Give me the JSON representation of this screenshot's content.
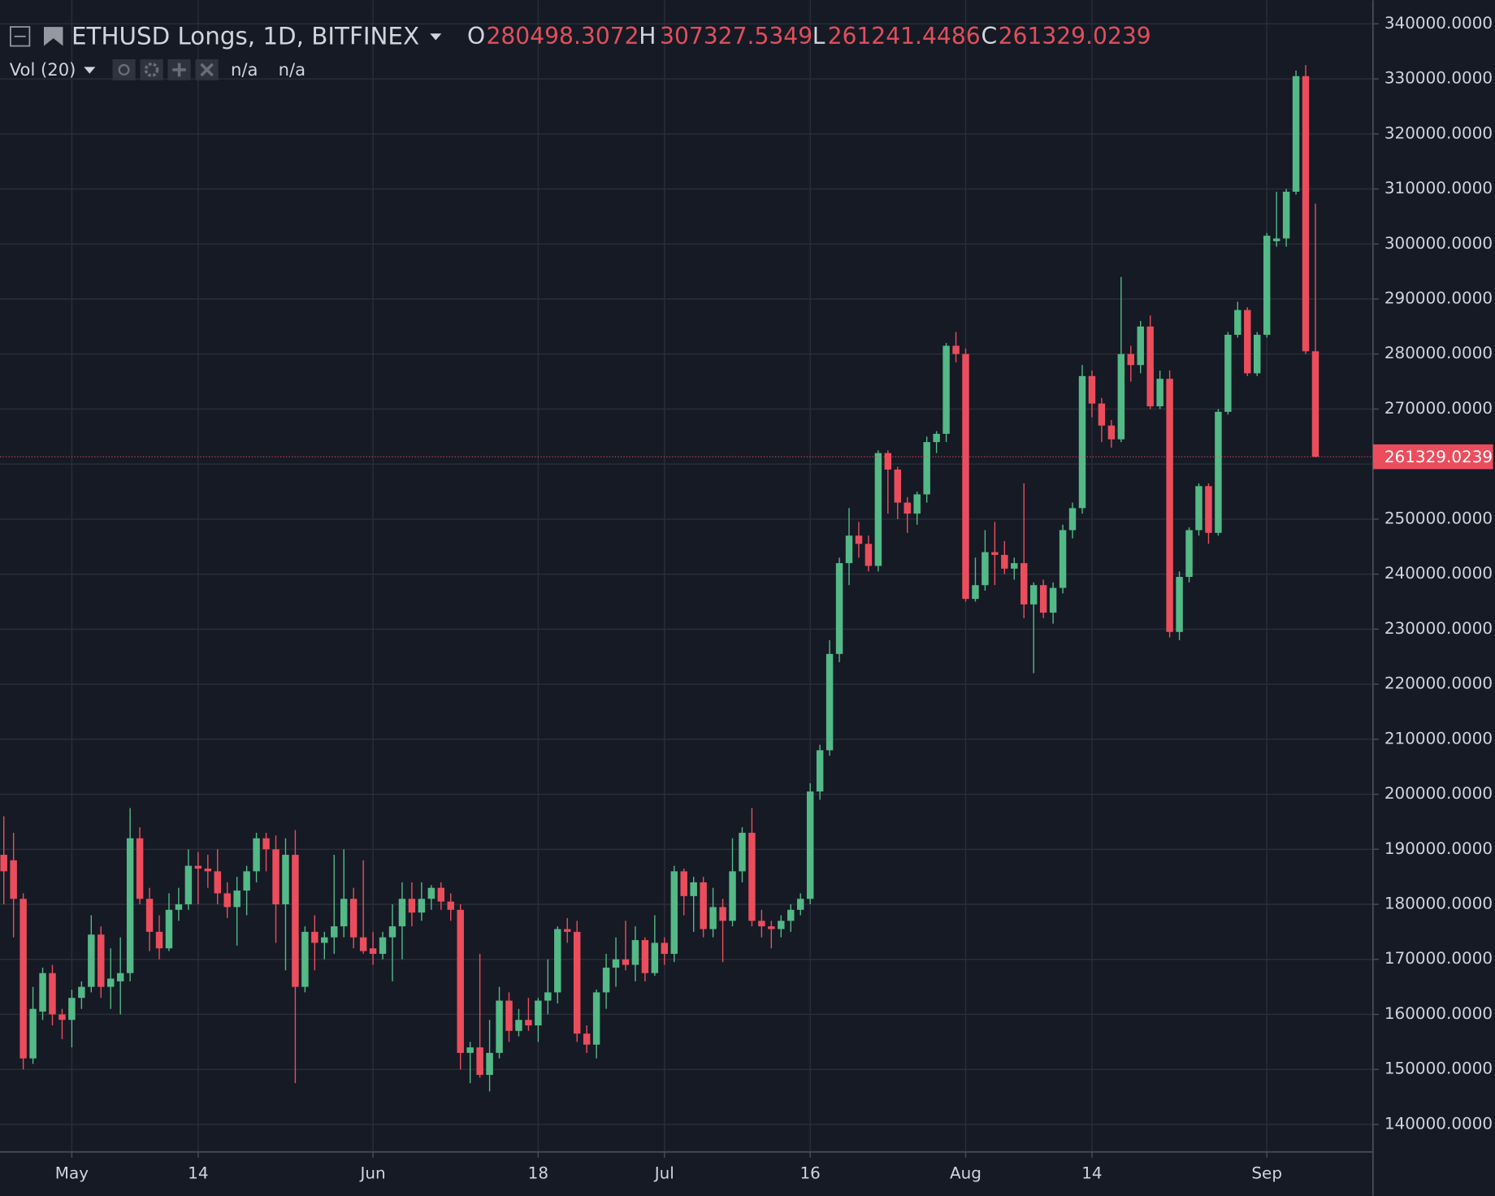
{
  "chart_data": {
    "type": "candlestick",
    "title": "ETHUSD Longs, 1D, BITFINEX",
    "open_label": "O",
    "high_label": "H",
    "low_label": "L",
    "close_label": "C",
    "indicator": "Vol (20)",
    "indicator_values": [
      "n/a",
      "n/a"
    ],
    "up_color": "#53b987",
    "down_color": "#eb4d5c",
    "grid": true,
    "ylim": [
      135000,
      344300
    ],
    "yticks": [
      {
        "value": 140000,
        "label": "140000.0000"
      },
      {
        "value": 150000,
        "label": "150000.0000"
      },
      {
        "value": 160000,
        "label": "160000.0000"
      },
      {
        "value": 170000,
        "label": "170000.0000"
      },
      {
        "value": 180000,
        "label": "180000.0000"
      },
      {
        "value": 190000,
        "label": "190000.0000"
      },
      {
        "value": 200000,
        "label": "200000.0000"
      },
      {
        "value": 210000,
        "label": "210000.0000"
      },
      {
        "value": 220000,
        "label": "220000.0000"
      },
      {
        "value": 230000,
        "label": "230000.0000"
      },
      {
        "value": 240000,
        "label": "240000.0000"
      },
      {
        "value": 250000,
        "label": "250000.0000"
      },
      {
        "value": 260000,
        "label": "260000.0000"
      },
      {
        "value": 270000,
        "label": "270000.0000"
      },
      {
        "value": 280000,
        "label": "280000.0000"
      },
      {
        "value": 290000,
        "label": "290000.0000"
      },
      {
        "value": 300000,
        "label": "300000.0000"
      },
      {
        "value": 310000,
        "label": "310000.0000"
      },
      {
        "value": 320000,
        "label": "320000.0000"
      },
      {
        "value": 330000,
        "label": "330000.0000"
      },
      {
        "value": 340000,
        "label": "340000.0000"
      }
    ],
    "categories": [
      null,
      null,
      null,
      null,
      null,
      null,
      null,
      "May",
      null,
      null,
      null,
      null,
      null,
      null,
      null,
      null,
      null,
      null,
      null,
      null,
      "14",
      null,
      null,
      null,
      null,
      null,
      null,
      null,
      null,
      null,
      null,
      null,
      null,
      null,
      null,
      null,
      null,
      null,
      "Jun",
      null,
      null,
      null,
      null,
      null,
      null,
      null,
      null,
      null,
      null,
      null,
      null,
      null,
      null,
      null,
      null,
      "18",
      null,
      null,
      null,
      null,
      null,
      null,
      null,
      null,
      null,
      null,
      null,
      null,
      "Jul",
      null,
      null,
      null,
      null,
      null,
      null,
      null,
      null,
      null,
      null,
      null,
      null,
      null,
      null,
      "16",
      null,
      null,
      null,
      null,
      null,
      null,
      null,
      null,
      null,
      null,
      null,
      null,
      null,
      null,
      null,
      "Aug",
      null,
      null,
      null,
      null,
      null,
      null,
      null,
      null,
      null,
      null,
      null,
      null,
      "14",
      null,
      null,
      null,
      null,
      null,
      null,
      null,
      null,
      null,
      null,
      null,
      null,
      null,
      null,
      null,
      null,
      null,
      "Sep",
      null,
      null,
      null,
      null,
      null
    ],
    "open": [
      189000,
      188000,
      181000,
      152000,
      160500,
      167500,
      160000,
      159000,
      163000,
      165000,
      174500,
      165000,
      166000,
      167500,
      192000,
      181000,
      175000,
      172000,
      179000,
      180000,
      187000,
      186500,
      186000,
      182000,
      179500,
      182500,
      186000,
      192000,
      190000,
      180000,
      189000,
      165000,
      175000,
      173000,
      174000,
      176000,
      181000,
      174000,
      172000,
      171000,
      174000,
      176000,
      181000,
      178500,
      181000,
      183000,
      180500,
      179000,
      153000,
      154000,
      149000,
      153000,
      162500,
      157000,
      159000,
      158000,
      162500,
      164000,
      175500,
      175000,
      156500,
      154500,
      164000,
      168500,
      170000,
      169000,
      173500,
      167500,
      173000,
      171000,
      186000,
      181500,
      184000,
      175500,
      179500,
      177000,
      186000,
      193000,
      177000,
      176000,
      175500,
      177000,
      179000,
      181000,
      200500,
      208000,
      225500,
      242000,
      247000,
      245500,
      241500,
      262000,
      259000,
      253000,
      251000,
      254500,
      264000,
      265500,
      281500,
      280000,
      235500,
      238000,
      244000,
      243500,
      241000,
      242000,
      234500,
      238000,
      233000,
      237500,
      248000,
      252000,
      276000,
      271000,
      267000,
      264500,
      280000,
      278000,
      285000,
      270500,
      275500,
      229500,
      239500,
      248000,
      256000,
      247500,
      269500,
      283500,
      288000,
      276500,
      283500,
      300500,
      301000,
      309500,
      330500,
      280498.3072
    ],
    "high": [
      196000,
      193000,
      182000,
      165000,
      168500,
      169000,
      161000,
      164500,
      166000,
      178000,
      176000,
      172000,
      174000,
      197500,
      194000,
      183000,
      178000,
      182000,
      183000,
      190000,
      189500,
      189000,
      190000,
      184000,
      185000,
      187000,
      193000,
      193000,
      192500,
      192000,
      193500,
      176000,
      178000,
      175000,
      189000,
      190000,
      183000,
      188000,
      175000,
      175000,
      180000,
      184000,
      184000,
      184000,
      183500,
      184000,
      182000,
      180000,
      155000,
      171000,
      159000,
      165000,
      164000,
      161000,
      163000,
      163000,
      170000,
      176000,
      177500,
      177000,
      158000,
      164500,
      171000,
      174000,
      177000,
      176000,
      174000,
      178000,
      174000,
      187000,
      186500,
      185000,
      185000,
      183000,
      181000,
      192000,
      194000,
      197500,
      179000,
      177000,
      178000,
      180000,
      182000,
      202000,
      209000,
      228000,
      243000,
      252000,
      249500,
      247000,
      262500,
      262500,
      259500,
      254000,
      255000,
      265000,
      266000,
      282000,
      284000,
      281000,
      243000,
      248000,
      249500,
      246000,
      243000,
      256500,
      238500,
      239000,
      238500,
      249000,
      253000,
      278000,
      277000,
      272000,
      268000,
      294000,
      281500,
      286000,
      287000,
      277000,
      277000,
      240500,
      248500,
      256500,
      256500,
      270000,
      284000,
      289500,
      288500,
      284000,
      302000,
      309500,
      310000,
      331500,
      332500,
      307327.5349
    ],
    "low": [
      180000,
      174000,
      150000,
      151000,
      159000,
      158000,
      155500,
      154000,
      161000,
      164000,
      163000,
      161000,
      160000,
      166000,
      180000,
      171500,
      170000,
      171500,
      177000,
      179000,
      180000,
      183000,
      180000,
      177500,
      172500,
      178000,
      184000,
      186000,
      173000,
      168000,
      147500,
      164000,
      168000,
      170000,
      171000,
      174000,
      172000,
      171000,
      169000,
      170000,
      166000,
      170000,
      176000,
      177000,
      179000,
      179000,
      177000,
      150000,
      147500,
      148500,
      146000,
      152000,
      155000,
      156000,
      157000,
      155000,
      160000,
      162000,
      173000,
      155000,
      153000,
      152000,
      161000,
      165000,
      168000,
      166000,
      166000,
      167000,
      169000,
      169500,
      178000,
      175000,
      174000,
      174000,
      169500,
      176000,
      184000,
      176000,
      174000,
      172000,
      174000,
      175000,
      178000,
      180000,
      199000,
      207000,
      224000,
      238000,
      243000,
      240500,
      240500,
      251000,
      250000,
      247500,
      249000,
      253000,
      262000,
      264000,
      278500,
      235000,
      235000,
      237000,
      238000,
      240000,
      239000,
      232000,
      222000,
      232000,
      231000,
      236500,
      246500,
      251000,
      268500,
      264000,
      263000,
      264000,
      275000,
      276500,
      270000,
      270000,
      228500,
      228000,
      238500,
      247000,
      245500,
      247000,
      269000,
      283000,
      276000,
      276000,
      283000,
      299500,
      299500,
      309000,
      280000,
      261241.4486
    ],
    "close": [
      186000,
      181000,
      152000,
      161000,
      167500,
      160000,
      159000,
      163000,
      165000,
      174500,
      165000,
      166500,
      167500,
      192000,
      181000,
      175000,
      172000,
      179000,
      180000,
      187000,
      186500,
      186000,
      182000,
      179500,
      182500,
      186000,
      192000,
      190000,
      180000,
      189000,
      165000,
      175000,
      173000,
      174000,
      176000,
      181000,
      174000,
      171500,
      171000,
      174000,
      176000,
      181000,
      178500,
      181000,
      183000,
      180500,
      179000,
      153000,
      154000,
      149000,
      153000,
      162500,
      157000,
      159000,
      158000,
      162500,
      164000,
      175500,
      175000,
      156500,
      154500,
      164000,
      168500,
      170000,
      169000,
      173500,
      167500,
      173000,
      171000,
      186000,
      181500,
      184000,
      175500,
      179500,
      177000,
      186000,
      193000,
      177000,
      176000,
      175500,
      177000,
      179000,
      181000,
      200500,
      208000,
      225500,
      242000,
      247000,
      245500,
      241500,
      262000,
      259000,
      253000,
      251000,
      254500,
      264000,
      265500,
      281500,
      280000,
      235500,
      238000,
      244000,
      243500,
      241000,
      242000,
      234500,
      238000,
      233000,
      237500,
      248000,
      252000,
      276000,
      271000,
      267000,
      264500,
      280000,
      278000,
      285000,
      270500,
      275500,
      229500,
      239500,
      248000,
      256000,
      247500,
      269500,
      283500,
      288000,
      276500,
      283500,
      301500,
      301000,
      309500,
      330500,
      280500,
      261329.0239
    ]
  }
}
